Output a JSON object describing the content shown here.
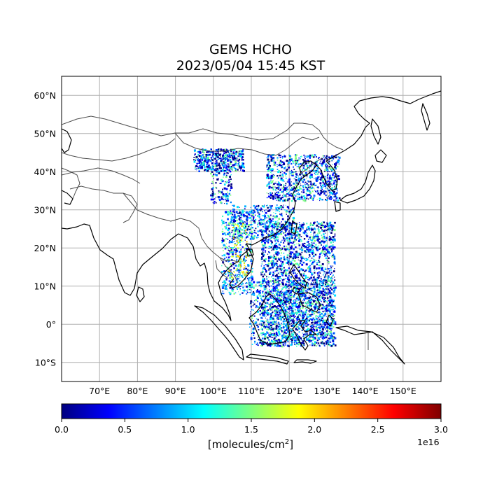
{
  "title_line1": "GEMS HCHO",
  "title_line2": "2023/05/04 15:45 KST",
  "map": {
    "lon_range": [
      60,
      160
    ],
    "lat_range": [
      -15,
      65
    ],
    "lon_ticks": [
      70,
      80,
      90,
      100,
      110,
      120,
      130,
      140,
      150
    ],
    "lat_ticks": [
      -10,
      0,
      10,
      20,
      30,
      40,
      50,
      60
    ],
    "lon_tick_labels": [
      "70°E",
      "80°E",
      "90°E",
      "100°E",
      "110°E",
      "120°E",
      "130°E",
      "140°E",
      "150°E"
    ],
    "lat_tick_labels": [
      "10°S",
      "0°",
      "10°N",
      "20°N",
      "30°N",
      "40°N",
      "50°N",
      "60°N"
    ],
    "grid": true
  },
  "colorbar": {
    "colormap": "jet",
    "ticks": [
      0.0,
      0.5,
      1.0,
      1.5,
      2.0,
      2.5,
      3.0
    ],
    "tick_labels": [
      "0.0",
      "0.5",
      "1.0",
      "1.5",
      "2.0",
      "2.5",
      "3.0"
    ],
    "unit_prefix": "[molecules/cm",
    "unit_sup": "2",
    "unit_suffix": "]",
    "exponent_label": "1e16",
    "colors": [
      "#00007f",
      "#0000ff",
      "#007fff",
      "#00ffff",
      "#7fff7f",
      "#ffff00",
      "#ff7f00",
      "#ff0000",
      "#7f0000"
    ]
  },
  "colors": {
    "grid": "#b0b0b0",
    "coastline": "#000000",
    "border": "#4d4d4d"
  }
}
